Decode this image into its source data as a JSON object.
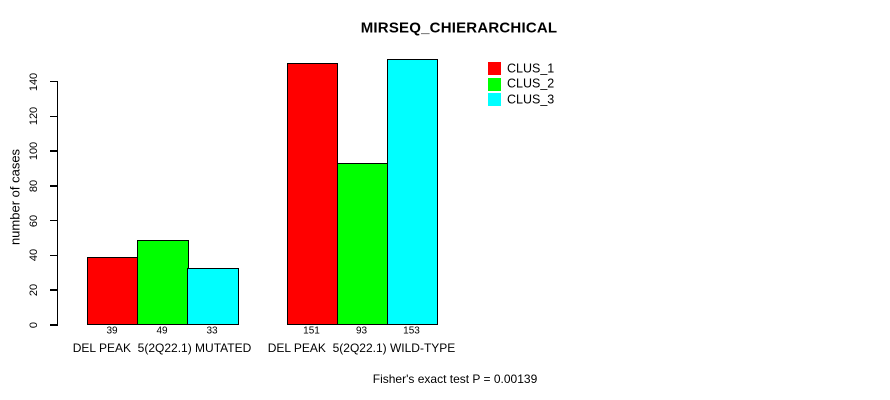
{
  "chart_data": {
    "type": "bar",
    "title": "MIRSEQ_CHIERARCHICAL",
    "ylabel": "number of cases",
    "xlabel": "",
    "categories": [
      "DEL PEAK  5(2Q22.1) MUTATED",
      "DEL PEAK  5(2Q22.1) WILD-TYPE"
    ],
    "series": [
      {
        "name": "CLUS_1",
        "color": "#ff0000",
        "values": [
          39,
          151
        ]
      },
      {
        "name": "CLUS_2",
        "color": "#00ff00",
        "values": [
          49,
          93
        ]
      },
      {
        "name": "CLUS_3",
        "color": "#00ffff",
        "values": [
          33,
          153
        ]
      }
    ],
    "bar_value_labels": [
      [
        39,
        49,
        33
      ],
      [
        151,
        93,
        153
      ]
    ],
    "yticks": [
      0,
      20,
      40,
      60,
      80,
      100,
      120,
      140
    ],
    "ylim": [
      0,
      161
    ],
    "grid": false,
    "legend": {
      "position": "top-right",
      "entries": [
        "CLUS_1",
        "CLUS_2",
        "CLUS_3"
      ]
    },
    "annotation": "Fisher's exact test P = 0.00139",
    "bar_border_color": "#000000",
    "axis_color": "#000000",
    "background_color": "#ffffff",
    "text_color": "#000000"
  }
}
